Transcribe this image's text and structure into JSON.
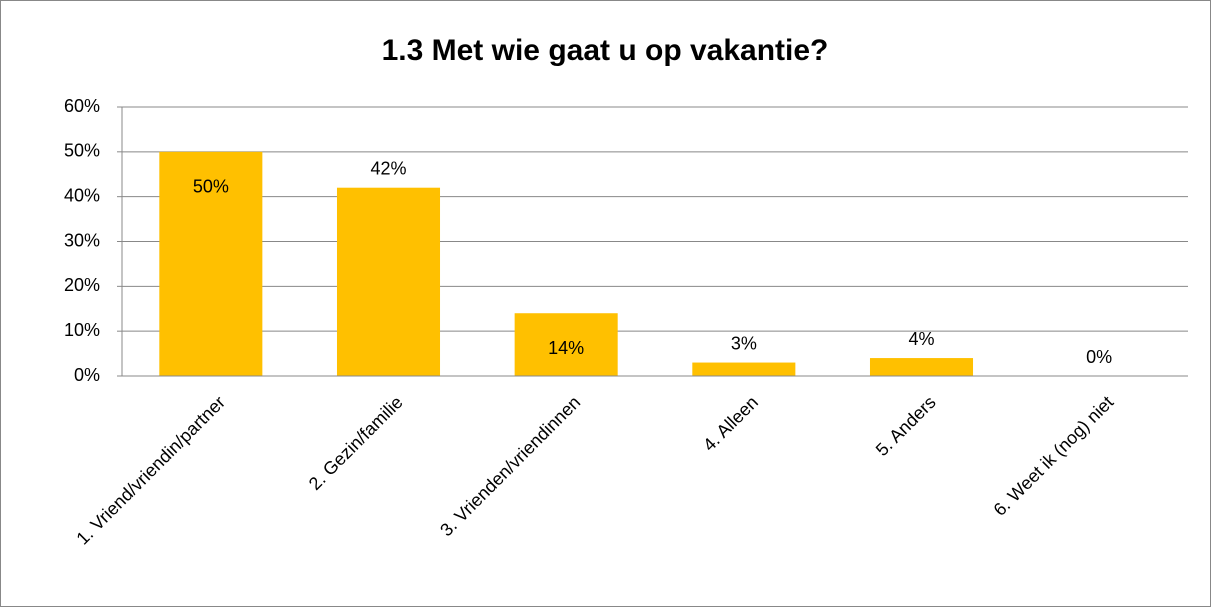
{
  "chart_data": {
    "type": "bar",
    "title": "1.3 Met wie gaat u op vakantie?",
    "categories": [
      "1. Vriend/vriendin/partner",
      "2. Gezin/familie",
      "3. Vrienden/vriendinnen",
      "4. Alleen",
      "5. Anders",
      "6. Weet ik (nog) niet"
    ],
    "values": [
      50,
      42,
      14,
      3,
      4,
      0
    ],
    "value_labels": [
      "50%",
      "42%",
      "14%",
      "3%",
      "4%",
      "0%"
    ],
    "color": "#ffc000",
    "ylim": [
      0,
      60
    ],
    "yticks": [
      {
        "value": 0,
        "label": "0%"
      },
      {
        "value": 10,
        "label": "10%"
      },
      {
        "value": 20,
        "label": "20%"
      },
      {
        "value": 30,
        "label": "30%"
      },
      {
        "value": 40,
        "label": "40%"
      },
      {
        "value": 50,
        "label": "50%"
      },
      {
        "value": 60,
        "label": "60%"
      }
    ],
    "grid": true
  }
}
